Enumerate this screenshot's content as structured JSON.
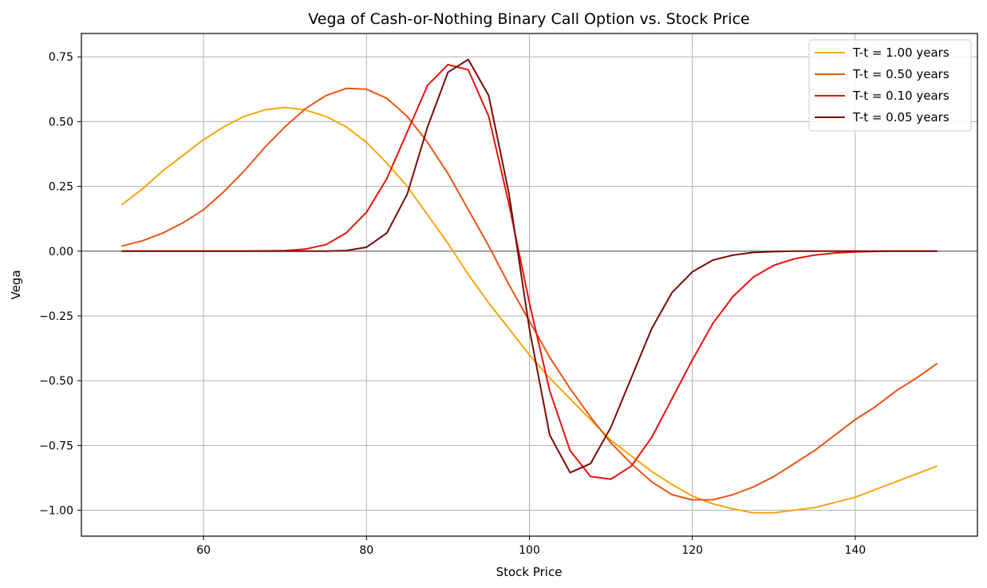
{
  "chart_data": {
    "type": "line",
    "title": "Vega of Cash-or-Nothing Binary Call Option vs. Stock Price",
    "xlabel": "Stock Price",
    "ylabel": "Vega",
    "xlim": [
      45,
      155
    ],
    "ylim": [
      -1.1,
      0.84
    ],
    "xticks": [
      60,
      80,
      100,
      120,
      140
    ],
    "xtick_labels": [
      "60",
      "80",
      "100",
      "120",
      "140"
    ],
    "yticks": [
      0.75,
      0.5,
      0.25,
      0.0,
      -0.25,
      -0.5,
      -0.75,
      -1.0
    ],
    "ytick_labels": [
      "0.75",
      "0.50",
      "0.25",
      "0.00",
      "−0.25",
      "−0.50",
      "−0.75",
      "−1.00"
    ],
    "grid": true,
    "legend_position": "top-right",
    "zero_line_color": "#808080",
    "x": [
      50,
      52.5,
      55,
      57.5,
      60,
      62.5,
      65,
      67.5,
      70,
      72.5,
      75,
      77.5,
      80,
      82.5,
      85,
      87.5,
      90,
      92.5,
      95,
      97.5,
      100,
      102.5,
      105,
      107.5,
      110,
      112.5,
      115,
      117.5,
      120,
      122.5,
      125,
      127.5,
      130,
      132.5,
      135,
      137.5,
      140,
      142.5,
      145,
      147.5,
      150
    ],
    "series": [
      {
        "name": "T-t = 1.00 years",
        "color": "#f5a50f",
        "values": [
          0.18,
          0.24,
          0.31,
          0.37,
          0.43,
          0.48,
          0.52,
          0.545,
          0.555,
          0.545,
          0.52,
          0.48,
          0.42,
          0.34,
          0.25,
          0.14,
          0.03,
          -0.09,
          -0.2,
          -0.3,
          -0.4,
          -0.49,
          -0.57,
          -0.65,
          -0.73,
          -0.79,
          -0.85,
          -0.9,
          -0.945,
          -0.975,
          -0.995,
          -1.01,
          -1.01,
          -1.0,
          -0.99,
          -0.97,
          -0.95,
          -0.92,
          -0.89,
          -0.86,
          -0.83
        ]
      },
      {
        "name": "T-t = 0.50 years",
        "color": "#ea5515",
        "values": [
          0.02,
          0.04,
          0.07,
          0.11,
          0.16,
          0.23,
          0.31,
          0.4,
          0.48,
          0.55,
          0.6,
          0.628,
          0.625,
          0.59,
          0.52,
          0.42,
          0.3,
          0.16,
          0.02,
          -0.13,
          -0.27,
          -0.41,
          -0.53,
          -0.64,
          -0.74,
          -0.82,
          -0.89,
          -0.94,
          -0.96,
          -0.96,
          -0.94,
          -0.91,
          -0.87,
          -0.82,
          -0.77,
          -0.71,
          -0.65,
          -0.6,
          -0.54,
          -0.49,
          -0.435
        ]
      },
      {
        "name": "T-t = 0.10 years",
        "color": "#e8130c",
        "values": [
          0.0,
          0.0,
          0.0,
          0.0,
          0.0,
          0.0,
          0.0,
          0.001,
          0.002,
          0.008,
          0.025,
          0.07,
          0.15,
          0.28,
          0.46,
          0.64,
          0.72,
          0.7,
          0.52,
          0.18,
          -0.2,
          -0.54,
          -0.77,
          -0.87,
          -0.88,
          -0.83,
          -0.72,
          -0.57,
          -0.42,
          -0.28,
          -0.175,
          -0.1,
          -0.055,
          -0.03,
          -0.015,
          -0.007,
          -0.003,
          -0.001,
          0.0,
          0.0,
          0.0
        ]
      },
      {
        "name": "T-t = 0.05 years",
        "color": "#7a0c09",
        "values": [
          0.0,
          0.0,
          0.0,
          0.0,
          0.0,
          0.0,
          0.0,
          0.0,
          0.0,
          0.0,
          0.0,
          0.002,
          0.015,
          0.07,
          0.22,
          0.48,
          0.69,
          0.74,
          0.6,
          0.22,
          -0.3,
          -0.71,
          -0.855,
          -0.82,
          -0.68,
          -0.49,
          -0.3,
          -0.16,
          -0.08,
          -0.035,
          -0.015,
          -0.005,
          -0.002,
          0.0,
          0.0,
          0.0,
          0.0,
          0.0,
          0.0,
          0.0,
          0.0
        ]
      }
    ]
  }
}
